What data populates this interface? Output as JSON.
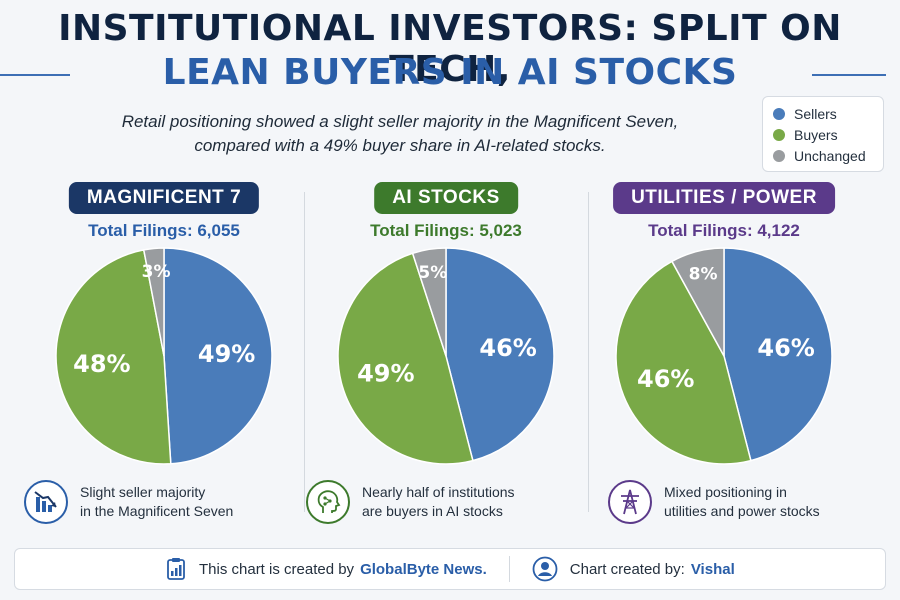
{
  "header": {
    "title_line1": "INSTITUTIONAL INVESTORS: SPLIT ON TECH,",
    "title_line2": "LEAN BUYERS IN AI STOCKS",
    "subtitle_line1": "Retail positioning showed a slight seller majority in the Magnificent Seven,",
    "subtitle_line2": "compared with a 49% buyer share in AI-related stocks."
  },
  "legend": {
    "items": [
      {
        "label": "Sellers",
        "color": "#4a7cba"
      },
      {
        "label": "Buyers",
        "color": "#79a947"
      },
      {
        "label": "Unchanged",
        "color": "#999c9f"
      }
    ]
  },
  "panels": [
    {
      "badge": "MAGNIFICENT 7",
      "badge_color": "#1b3766",
      "total": "Total Filings: 6,055",
      "total_color": "#2a5ea8",
      "icon": "chart-down-icon",
      "caption_line1": "Slight seller majority",
      "caption_line2": "in the Magnificent Seven",
      "accent": "#2a5ea8"
    },
    {
      "badge": "AI STOCKS",
      "badge_color": "#3d7a2c",
      "total": "Total Filings: 5,023",
      "total_color": "#3d7a2c",
      "icon": "ai-head-icon",
      "caption_line1": "Nearly half of institutions",
      "caption_line2": "are buyers in AI stocks",
      "accent": "#3d7a2c"
    },
    {
      "badge": "UTILITIES / POWER",
      "badge_color": "#5b3a8a",
      "total": "Total Filings: 4,122",
      "total_color": "#5b3a8a",
      "icon": "power-tower-icon",
      "caption_line1": "Mixed positioning in",
      "caption_line2": "utilities and power stocks",
      "accent": "#5b3a8a"
    }
  ],
  "footer": {
    "created_by_text": "This chart is created by",
    "created_by_name": "GlobalByte News.",
    "author_label": "Chart created by:",
    "author_name": "Vishal"
  },
  "chart_data": [
    {
      "type": "pie",
      "title": "MAGNIFICENT 7",
      "categories": [
        "Sellers",
        "Buyers",
        "Unchanged"
      ],
      "values": [
        49,
        48,
        3
      ],
      "labels": [
        "49%",
        "48%",
        "3%"
      ]
    },
    {
      "type": "pie",
      "title": "AI STOCKS",
      "categories": [
        "Sellers",
        "Buyers",
        "Unchanged"
      ],
      "values": [
        46,
        49,
        5
      ],
      "labels": [
        "46%",
        "49%",
        "5%"
      ]
    },
    {
      "type": "pie",
      "title": "UTILITIES / POWER",
      "categories": [
        "Sellers",
        "Buyers",
        "Unchanged"
      ],
      "values": [
        46,
        46,
        8
      ],
      "labels": [
        "46%",
        "46%",
        "8%"
      ]
    }
  ]
}
